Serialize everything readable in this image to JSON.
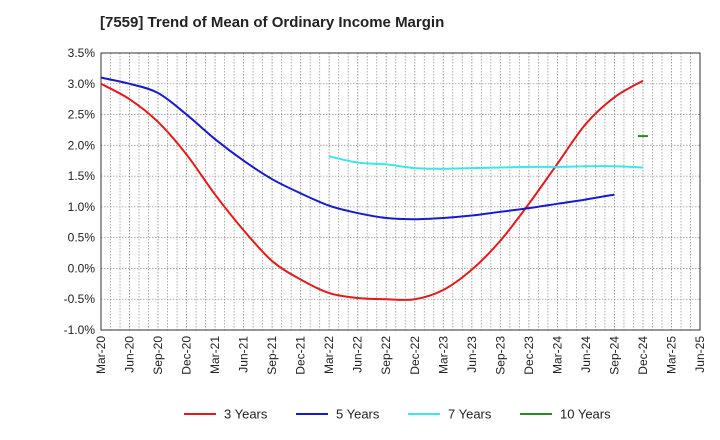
{
  "chart_data": {
    "type": "line",
    "title": "[7559]  Trend of Mean of Ordinary Income Margin",
    "xlabel": "",
    "ylabel": "",
    "x": [
      "Mar-20",
      "Jun-20",
      "Sep-20",
      "Dec-20",
      "Mar-21",
      "Jun-21",
      "Sep-21",
      "Dec-21",
      "Mar-22",
      "Jun-22",
      "Sep-22",
      "Dec-22",
      "Mar-23",
      "Jun-23",
      "Sep-23",
      "Dec-23",
      "Mar-24",
      "Jun-24",
      "Sep-24",
      "Dec-24",
      "Mar-25",
      "Jun-25"
    ],
    "y_ticks": [
      "3.5%",
      "3.0%",
      "2.5%",
      "2.0%",
      "1.5%",
      "1.0%",
      "0.5%",
      "0.0%",
      "-0.5%",
      "-1.0%"
    ],
    "ylim": [
      -1.0,
      3.5
    ],
    "y_unit": "%",
    "grid": true,
    "legend_position": "bottom",
    "series": [
      {
        "name": "3 Years",
        "color": "#e41a1c",
        "values": [
          3.0,
          2.75,
          2.38,
          1.85,
          1.2,
          0.62,
          0.12,
          -0.18,
          -0.4,
          -0.48,
          -0.5,
          -0.5,
          -0.35,
          -0.02,
          0.45,
          1.05,
          1.7,
          2.35,
          2.78,
          3.05,
          null,
          null
        ]
      },
      {
        "name": "5 Years",
        "color": "#1a1acd",
        "values": [
          3.1,
          3.0,
          2.85,
          2.5,
          2.1,
          1.75,
          1.45,
          1.22,
          1.02,
          0.9,
          0.82,
          0.8,
          0.82,
          0.86,
          0.92,
          0.98,
          1.05,
          1.12,
          1.2,
          null,
          null,
          null
        ]
      },
      {
        "name": "7 Years",
        "color": "#3ee6e6",
        "values": [
          null,
          null,
          null,
          null,
          null,
          null,
          null,
          null,
          1.82,
          1.72,
          1.69,
          1.63,
          1.62,
          1.63,
          1.64,
          1.65,
          1.65,
          1.66,
          1.66,
          1.64,
          null,
          null
        ]
      },
      {
        "name": "10 Years",
        "color": "#2a8a2a",
        "values": [
          null,
          null,
          null,
          null,
          null,
          null,
          null,
          null,
          null,
          null,
          null,
          null,
          null,
          null,
          null,
          null,
          null,
          null,
          null,
          2.15,
          null,
          null
        ]
      }
    ]
  }
}
